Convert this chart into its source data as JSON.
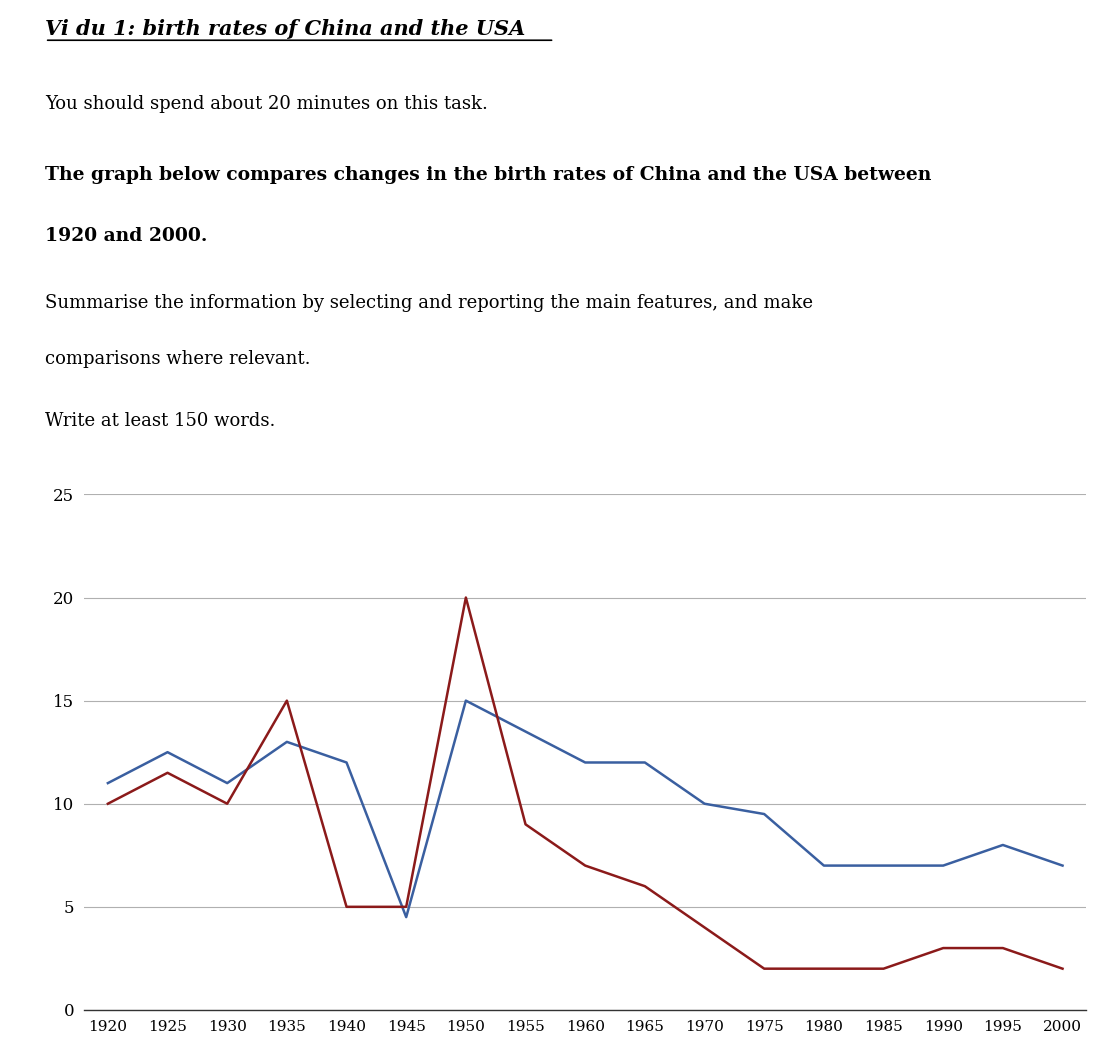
{
  "years": [
    1920,
    1925,
    1930,
    1935,
    1940,
    1945,
    1950,
    1955,
    1960,
    1965,
    1970,
    1975,
    1980,
    1985,
    1990,
    1995,
    2000
  ],
  "china": [
    11,
    12.5,
    11,
    13,
    12,
    4.5,
    15,
    13.5,
    12,
    12,
    10,
    9.5,
    7,
    7,
    7,
    8,
    7
  ],
  "usa": [
    10,
    11.5,
    10,
    15,
    5,
    5,
    20,
    9,
    7,
    6,
    4,
    2,
    2,
    2,
    3,
    3,
    2
  ],
  "china_color": "#3a5fa0",
  "usa_color": "#8b1a1a",
  "ylim": [
    0,
    25
  ],
  "xlim": [
    1918,
    2002
  ],
  "yticks": [
    0,
    5,
    10,
    15,
    20,
    25
  ],
  "xticks": [
    1920,
    1925,
    1930,
    1935,
    1940,
    1945,
    1950,
    1955,
    1960,
    1965,
    1970,
    1975,
    1980,
    1985,
    1990,
    1995,
    2000
  ],
  "grid_color": "#b0b0b0",
  "background_color": "#ffffff",
  "title_text": "Vi du 1: birth rates of China and the USA",
  "line1_text": "You should spend about 20 minutes on this task.",
  "line2_text": "The graph below compares changes in the birth rates of China and the USA between",
  "line2b_text": "1920 and 2000.",
  "line3_text": "Summarise the information by selecting and reporting the main features, and make",
  "line3b_text": "comparisons where relevant.",
  "line4_text": "Write at least 150 words.",
  "line_width": 1.8
}
